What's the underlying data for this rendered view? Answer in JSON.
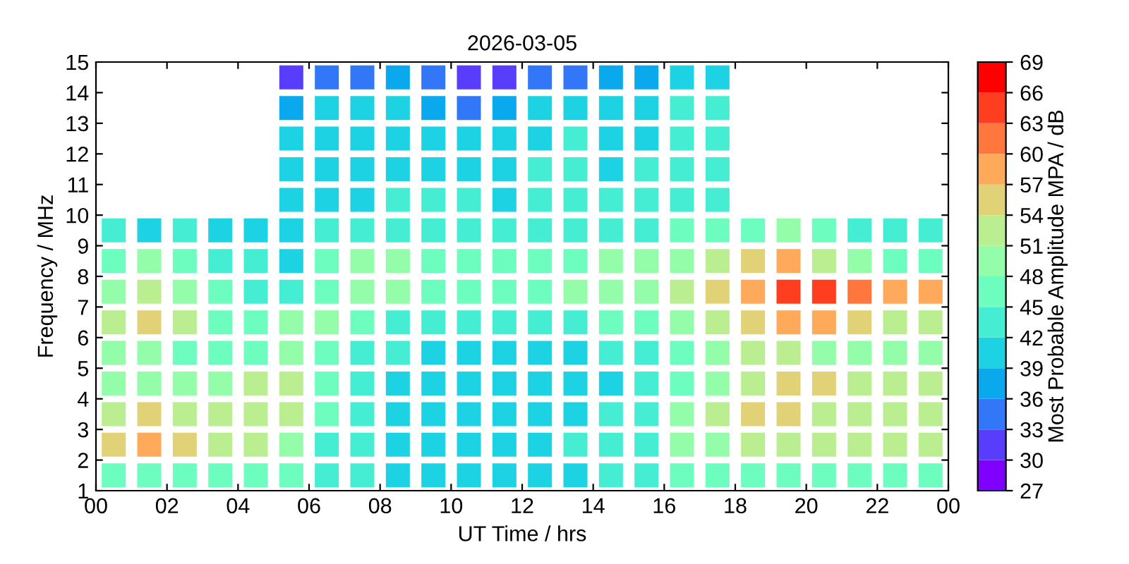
{
  "chart_data": {
    "type": "scatter",
    "title": "2026-03-05",
    "xlabel": "UT Time / hrs",
    "ylabel": "Frequency / MHz",
    "clabel": "Most Probable Amplitude MPA / dB",
    "marker": "square",
    "x": [
      5.5,
      6.5,
      7.5,
      8.5,
      9.5,
      10.5,
      11.5,
      12.5,
      13.5,
      14.5,
      15.5,
      16.5,
      17.5,
      5.5,
      6.5,
      7.5,
      8.5,
      9.5,
      10.5,
      11.5,
      12.5,
      13.5,
      14.5,
      15.5,
      16.5,
      17.5,
      5.5,
      6.5,
      7.5,
      8.5,
      9.5,
      10.5,
      11.5,
      12.5,
      13.5,
      14.5,
      15.5,
      16.5,
      17.5,
      5.5,
      6.5,
      7.5,
      8.5,
      9.5,
      10.5,
      11.5,
      12.5,
      13.5,
      14.5,
      15.5,
      16.5,
      17.5,
      5.5,
      6.5,
      7.5,
      8.5,
      9.5,
      10.5,
      11.5,
      12.5,
      13.5,
      14.5,
      15.5,
      16.5,
      17.5,
      0.5,
      1.5,
      2.5,
      3.5,
      4.5,
      5.5,
      6.5,
      7.5,
      8.5,
      9.5,
      10.5,
      11.5,
      12.5,
      13.5,
      14.5,
      15.5,
      16.5,
      17.5,
      18.5,
      19.5,
      20.5,
      21.5,
      22.5,
      23.5,
      0.5,
      1.5,
      2.5,
      3.5,
      4.5,
      5.5,
      6.5,
      7.5,
      8.5,
      9.5,
      10.5,
      11.5,
      12.5,
      13.5,
      14.5,
      15.5,
      16.5,
      17.5,
      18.5,
      19.5,
      20.5,
      21.5,
      22.5,
      23.5,
      0.5,
      1.5,
      2.5,
      3.5,
      4.5,
      5.5,
      6.5,
      7.5,
      8.5,
      9.5,
      10.5,
      11.5,
      12.5,
      13.5,
      14.5,
      15.5,
      16.5,
      17.5,
      18.5,
      19.5,
      20.5,
      21.5,
      22.5,
      23.5,
      0.5,
      1.5,
      2.5,
      3.5,
      4.5,
      5.5,
      6.5,
      7.5,
      8.5,
      9.5,
      10.5,
      11.5,
      12.5,
      13.5,
      14.5,
      15.5,
      16.5,
      17.5,
      18.5,
      19.5,
      20.5,
      21.5,
      22.5,
      23.5,
      0.5,
      1.5,
      2.5,
      3.5,
      4.5,
      5.5,
      6.5,
      7.5,
      8.5,
      9.5,
      10.5,
      11.5,
      12.5,
      13.5,
      14.5,
      15.5,
      16.5,
      17.5,
      18.5,
      19.5,
      20.5,
      21.5,
      22.5,
      23.5,
      0.5,
      1.5,
      2.5,
      3.5,
      4.5,
      5.5,
      6.5,
      7.5,
      8.5,
      9.5,
      10.5,
      11.5,
      12.5,
      13.5,
      14.5,
      15.5,
      16.5,
      17.5,
      18.5,
      19.5,
      20.5,
      21.5,
      22.5,
      23.5,
      0.5,
      1.5,
      2.5,
      3.5,
      4.5,
      5.5,
      6.5,
      7.5,
      8.5,
      9.5,
      10.5,
      11.5,
      12.5,
      13.5,
      14.5,
      15.5,
      16.5,
      17.5,
      18.5,
      19.5,
      20.5,
      21.5,
      22.5,
      23.5,
      0.5,
      1.5,
      2.5,
      3.5,
      4.5,
      5.5,
      6.5,
      7.5,
      8.5,
      9.5,
      10.5,
      11.5,
      12.5,
      13.5,
      14.5,
      15.5,
      16.5,
      17.5,
      18.5,
      19.5,
      20.5,
      21.5,
      22.5,
      23.5,
      0.5,
      1.5,
      2.5,
      3.5,
      4.5,
      5.5,
      6.5,
      7.5,
      8.5,
      9.5,
      10.5,
      11.5,
      12.5,
      13.5,
      14.5,
      15.5,
      16.5,
      17.5,
      18.5,
      19.5,
      20.5,
      21.5,
      22.5,
      23.5
    ],
    "values": [
      14.5,
      14.5,
      14.5,
      14.5,
      14.5,
      14.5,
      14.5,
      14.5,
      14.5,
      14.5,
      14.5,
      14.5,
      14.5,
      13.5,
      13.5,
      13.5,
      13.5,
      13.5,
      13.5,
      13.5,
      13.5,
      13.5,
      13.5,
      13.5,
      13.5,
      13.5,
      12.5,
      12.5,
      12.5,
      12.5,
      12.5,
      12.5,
      12.5,
      12.5,
      12.5,
      12.5,
      12.5,
      12.5,
      12.5,
      11.5,
      11.5,
      11.5,
      11.5,
      11.5,
      11.5,
      11.5,
      11.5,
      11.5,
      11.5,
      11.5,
      11.5,
      11.5,
      10.5,
      10.5,
      10.5,
      10.5,
      10.5,
      10.5,
      10.5,
      10.5,
      10.5,
      10.5,
      10.5,
      10.5,
      10.5,
      9.5,
      9.5,
      9.5,
      9.5,
      9.5,
      9.5,
      9.5,
      9.5,
      9.5,
      9.5,
      9.5,
      9.5,
      9.5,
      9.5,
      9.5,
      9.5,
      9.5,
      9.5,
      9.5,
      9.5,
      9.5,
      9.5,
      9.5,
      9.5,
      8.5,
      8.5,
      8.5,
      8.5,
      8.5,
      8.5,
      8.5,
      8.5,
      8.5,
      8.5,
      8.5,
      8.5,
      8.5,
      8.5,
      8.5,
      8.5,
      8.5,
      8.5,
      8.5,
      8.5,
      8.5,
      8.5,
      8.5,
      8.5,
      7.5,
      7.5,
      7.5,
      7.5,
      7.5,
      7.5,
      7.5,
      7.5,
      7.5,
      7.5,
      7.5,
      7.5,
      7.5,
      7.5,
      7.5,
      7.5,
      7.5,
      7.5,
      7.5,
      7.5,
      7.5,
      7.5,
      7.5,
      7.5,
      6.5,
      6.5,
      6.5,
      6.5,
      6.5,
      6.5,
      6.5,
      6.5,
      6.5,
      6.5,
      6.5,
      6.5,
      6.5,
      6.5,
      6.5,
      6.5,
      6.5,
      6.5,
      6.5,
      6.5,
      6.5,
      6.5,
      6.5,
      6.5,
      5.5,
      5.5,
      5.5,
      5.5,
      5.5,
      5.5,
      5.5,
      5.5,
      5.5,
      5.5,
      5.5,
      5.5,
      5.5,
      5.5,
      5.5,
      5.5,
      5.5,
      5.5,
      5.5,
      5.5,
      5.5,
      5.5,
      5.5,
      5.5,
      4.5,
      4.5,
      4.5,
      4.5,
      4.5,
      4.5,
      4.5,
      4.5,
      4.5,
      4.5,
      4.5,
      4.5,
      4.5,
      4.5,
      4.5,
      4.5,
      4.5,
      4.5,
      4.5,
      4.5,
      4.5,
      4.5,
      4.5,
      4.5,
      3.5,
      3.5,
      3.5,
      3.5,
      3.5,
      3.5,
      3.5,
      3.5,
      3.5,
      3.5,
      3.5,
      3.5,
      3.5,
      3.5,
      3.5,
      3.5,
      3.5,
      3.5,
      3.5,
      3.5,
      3.5,
      3.5,
      3.5,
      3.5,
      2.5,
      2.5,
      2.5,
      2.5,
      2.5,
      2.5,
      2.5,
      2.5,
      2.5,
      2.5,
      2.5,
      2.5,
      2.5,
      2.5,
      2.5,
      2.5,
      2.5,
      2.5,
      2.5,
      2.5,
      2.5,
      2.5,
      2.5,
      2.5,
      1.5,
      1.5,
      1.5,
      1.5,
      1.5,
      1.5,
      1.5,
      1.5,
      1.5,
      1.5,
      1.5,
      1.5,
      1.5,
      1.5,
      1.5,
      1.5,
      1.5,
      1.5,
      1.5,
      1.5,
      1.5,
      1.5,
      1.5,
      1.5
    ],
    "cvalues": [
      30,
      33,
      33,
      36,
      33,
      30,
      30,
      33,
      33,
      36,
      36,
      39,
      39,
      36,
      39,
      39,
      39,
      36,
      33,
      36,
      39,
      39,
      39,
      39,
      42,
      42,
      39,
      39,
      39,
      39,
      39,
      39,
      39,
      39,
      42,
      39,
      39,
      42,
      42,
      39,
      39,
      39,
      39,
      39,
      39,
      39,
      42,
      42,
      39,
      42,
      42,
      42,
      39,
      39,
      39,
      42,
      42,
      42,
      39,
      42,
      42,
      42,
      42,
      42,
      42,
      42,
      39,
      42,
      39,
      39,
      39,
      42,
      42,
      42,
      42,
      42,
      42,
      42,
      42,
      42,
      42,
      45,
      45,
      45,
      48,
      45,
      42,
      42,
      42,
      45,
      48,
      45,
      42,
      42,
      39,
      45,
      48,
      48,
      45,
      45,
      45,
      45,
      45,
      48,
      48,
      48,
      51,
      54,
      57,
      51,
      48,
      45,
      45,
      48,
      51,
      48,
      45,
      42,
      42,
      45,
      48,
      48,
      45,
      45,
      45,
      45,
      48,
      48,
      48,
      51,
      54,
      57,
      63,
      63,
      60,
      57,
      57,
      51,
      54,
      51,
      45,
      45,
      48,
      48,
      45,
      42,
      42,
      42,
      42,
      42,
      42,
      45,
      45,
      48,
      51,
      54,
      57,
      57,
      54,
      51,
      51,
      48,
      48,
      45,
      45,
      45,
      48,
      45,
      42,
      42,
      39,
      39,
      39,
      39,
      39,
      42,
      42,
      45,
      48,
      51,
      51,
      48,
      48,
      48,
      48,
      48,
      48,
      48,
      48,
      51,
      51,
      45,
      42,
      39,
      39,
      39,
      39,
      39,
      39,
      39,
      42,
      45,
      48,
      51,
      54,
      54,
      51,
      51,
      51,
      51,
      54,
      51,
      51,
      51,
      51,
      45,
      42,
      39,
      39,
      39,
      39,
      39,
      39,
      42,
      42,
      48,
      51,
      54,
      54,
      51,
      51,
      51,
      51,
      54,
      57,
      54,
      51,
      51,
      48,
      42,
      42,
      39,
      39,
      39,
      39,
      39,
      42,
      42,
      42,
      48,
      48,
      51,
      51,
      51,
      51,
      51,
      51,
      45,
      45,
      45,
      45,
      45,
      45,
      42,
      42,
      39,
      39,
      39,
      39,
      39,
      39,
      42,
      42,
      45,
      45,
      45,
      45,
      45,
      45,
      45,
      45
    ],
    "clim": [
      27,
      69
    ],
    "cticks": [
      27,
      30,
      33,
      36,
      39,
      42,
      45,
      48,
      51,
      54,
      57,
      60,
      63,
      66,
      69
    ],
    "xlim": [
      0,
      24
    ],
    "xticks": [
      {
        "value": 0,
        "label": "00"
      },
      {
        "value": 2,
        "label": "02"
      },
      {
        "value": 4,
        "label": "04"
      },
      {
        "value": 6,
        "label": "06"
      },
      {
        "value": 8,
        "label": "08"
      },
      {
        "value": 10,
        "label": "10"
      },
      {
        "value": 12,
        "label": "12"
      },
      {
        "value": 14,
        "label": "14"
      },
      {
        "value": 16,
        "label": "16"
      },
      {
        "value": 18,
        "label": "18"
      },
      {
        "value": 20,
        "label": "20"
      },
      {
        "value": 22,
        "label": "22"
      },
      {
        "value": 24,
        "label": "00"
      }
    ],
    "ylim": [
      1,
      15
    ],
    "yticks": [
      1,
      2,
      3,
      4,
      5,
      6,
      7,
      8,
      9,
      10,
      11,
      12,
      13,
      14,
      15
    ]
  }
}
